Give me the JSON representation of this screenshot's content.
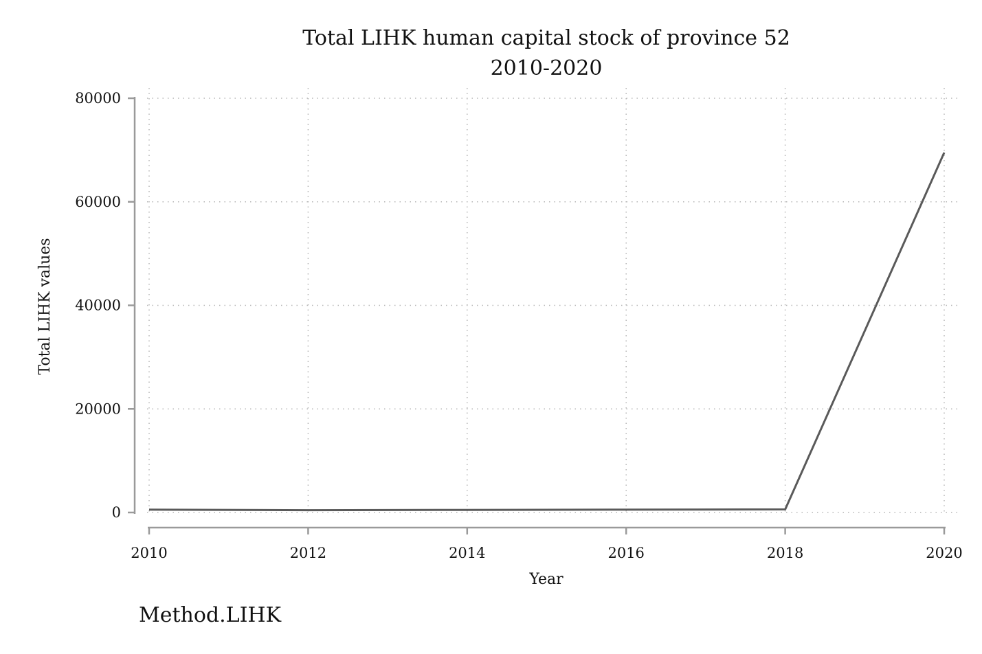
{
  "chart_data": {
    "type": "line",
    "title": "Total LIHK human capital stock of province 52",
    "subtitle": "2010-2020",
    "xlabel": "Year",
    "ylabel": "Total LIHK values",
    "note": "Method.LIHK",
    "x": [
      2010,
      2012,
      2014,
      2016,
      2018,
      2020
    ],
    "xticks": [
      "2010",
      "2012",
      "2014",
      "2016",
      "2018",
      "2020"
    ],
    "yticks": [
      "0",
      "20000",
      "40000",
      "60000",
      "80000"
    ],
    "xlim": [
      2010,
      2020
    ],
    "ylim": [
      0,
      80000
    ],
    "grid": true,
    "series": [
      {
        "values": [
          550,
          450,
          500,
          550,
          600,
          69500
        ],
        "color": "#5a5a5a"
      }
    ]
  }
}
